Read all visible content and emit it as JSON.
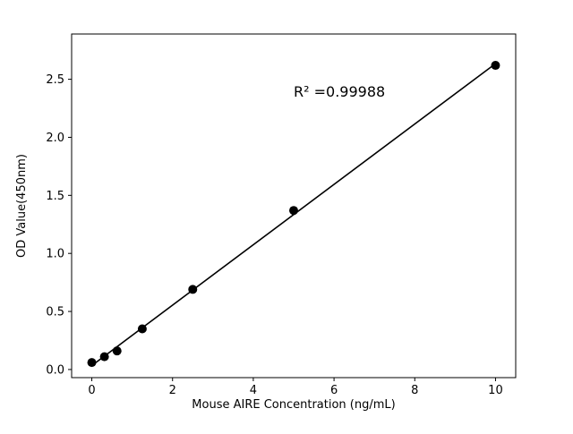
{
  "chart_data": {
    "type": "scatter",
    "title": "",
    "xlabel": "Mouse AIRE Concentration (ng/mL)",
    "ylabel": "OD Value(450nm)",
    "xlim": [
      -0.5,
      10.5
    ],
    "ylim": [
      -0.07,
      2.89
    ],
    "x_ticks": [
      0,
      2,
      4,
      6,
      8,
      10
    ],
    "x_tick_labels": [
      "0",
      "2",
      "4",
      "6",
      "8",
      "10"
    ],
    "y_ticks": [
      0.0,
      0.5,
      1.0,
      1.5,
      2.0,
      2.5
    ],
    "y_tick_labels": [
      "0.0",
      "0.5",
      "1.0",
      "1.5",
      "2.0",
      "2.5"
    ],
    "points": {
      "x": [
        0,
        0.3125,
        0.625,
        1.25,
        2.5,
        5,
        10
      ],
      "y": [
        0.06,
        0.11,
        0.16,
        0.35,
        0.69,
        1.37,
        2.62
      ]
    },
    "fit_line": {
      "slope": 0.2601,
      "intercept": 0.034,
      "x_start": 0,
      "x_end": 10
    },
    "annotation": {
      "text": "R² =0.99988",
      "x": 5.0,
      "y": 2.35
    },
    "grid": false,
    "legend_position": "none",
    "colors": {
      "marker": "#000000",
      "line": "#000000",
      "axis": "#000000",
      "background": "#ffffff"
    }
  }
}
